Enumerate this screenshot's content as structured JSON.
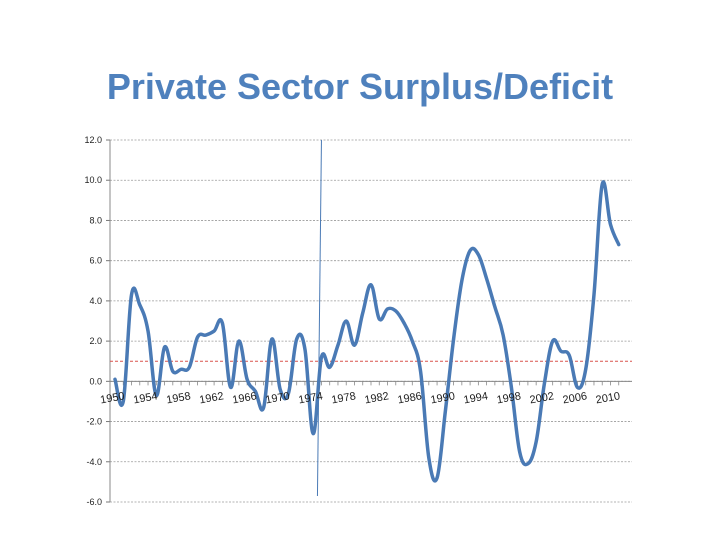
{
  "chart_data": {
    "type": "line",
    "title": "Private Sector Surplus/Deficit",
    "ylim": [
      -6,
      12
    ],
    "yticks": [
      "12.0",
      "10.0",
      "8.0",
      "6.0",
      "4.0",
      "2.0",
      "0.0",
      "-2.0",
      "-4.0",
      "-6.0"
    ],
    "xlim": [
      1950,
      2012
    ],
    "xticks": [
      "1950",
      "1954",
      "1958",
      "1962",
      "1966",
      "1970",
      "1974",
      "1978",
      "1982",
      "1986",
      "1990",
      "1994",
      "1998",
      "2002",
      "2006",
      "2010"
    ],
    "grid": true,
    "reference_line": 1.0,
    "vertical_marker": 1975,
    "series_color": "#4a7ab5",
    "series": [
      {
        "name": "",
        "x": [
          1950,
          1951,
          1952,
          1953,
          1954,
          1955,
          1956,
          1957,
          1958,
          1959,
          1960,
          1961,
          1962,
          1963,
          1964,
          1965,
          1966,
          1967,
          1968,
          1969,
          1970,
          1971,
          1972,
          1973,
          1974,
          1975,
          1976,
          1977,
          1978,
          1979,
          1980,
          1981,
          1982,
          1983,
          1984,
          1985,
          1986,
          1987,
          1988,
          1989,
          1990,
          1991,
          1992,
          1993,
          1994,
          1995,
          1996,
          1997,
          1998,
          1999,
          2000,
          2001,
          2002,
          2003,
          2004,
          2005,
          2006,
          2007,
          2008,
          2009,
          2010,
          2011
        ],
        "values": [
          0.1,
          -1.0,
          4.3,
          3.8,
          2.5,
          -0.7,
          1.7,
          0.5,
          0.6,
          0.7,
          2.2,
          2.3,
          2.5,
          2.9,
          -0.3,
          2.0,
          0.1,
          -0.5,
          -1.3,
          2.1,
          -0.4,
          -0.6,
          2.1,
          1.6,
          -2.6,
          1.2,
          0.7,
          1.8,
          3.0,
          1.8,
          3.4,
          4.8,
          3.1,
          3.6,
          3.5,
          2.9,
          2.0,
          0.5,
          -3.8,
          -4.8,
          -1.5,
          2.1,
          5.0,
          6.5,
          6.3,
          5.1,
          3.7,
          2.3,
          -0.3,
          -3.5,
          -4.1,
          -3.0,
          -0.1,
          2.0,
          1.5,
          1.3,
          -0.3,
          0.6,
          4.3,
          9.8,
          7.8,
          6.8
        ]
      }
    ]
  }
}
